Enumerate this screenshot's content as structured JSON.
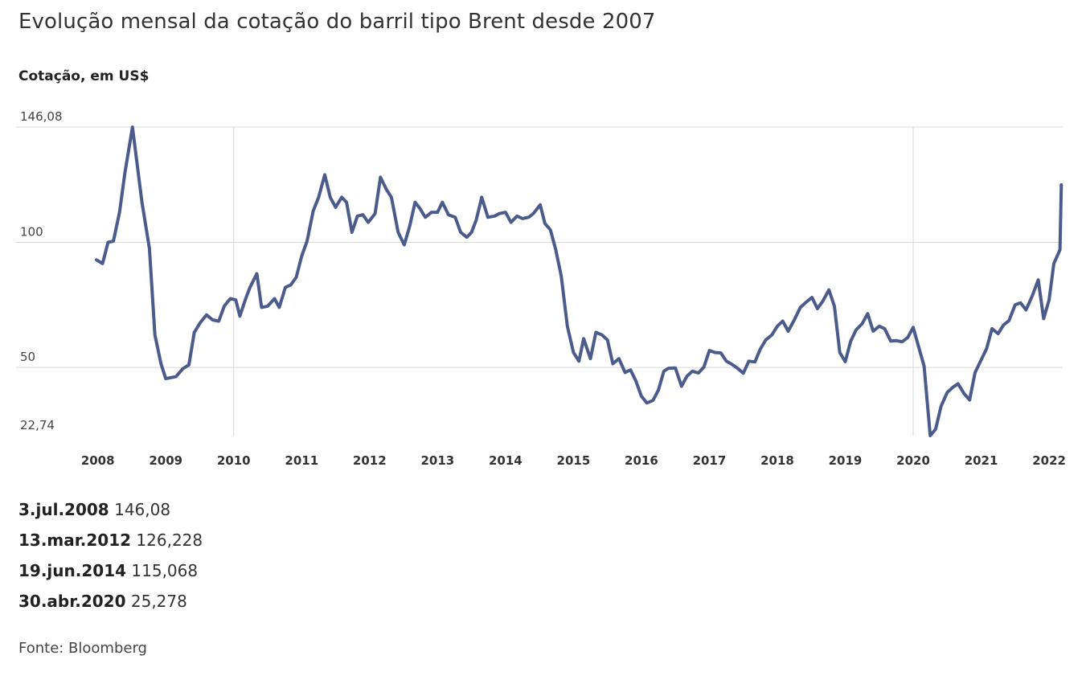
{
  "title": "Evolução mensal da cotação do barril tipo Brent desde 2007",
  "source": "Fonte: Bloomberg",
  "colors": {
    "line": "#4a5b8c",
    "grid": "#d9d9d9",
    "text": "#333333"
  },
  "highlights": [
    {
      "date": "3.jul.2008",
      "value": "146,08"
    },
    {
      "date": "13.mar.2012",
      "value": "126,228"
    },
    {
      "date": "19.jun.2014",
      "value": "115,068"
    },
    {
      "date": "30.abr.2020",
      "value": "25,278"
    }
  ],
  "chart_data": {
    "type": "line",
    "title": "Evolução mensal da cotação do barril tipo Brent desde 2007",
    "xlabel": "",
    "ylabel": "Cotação, em US$",
    "ylim": [
      22.74,
      146.08
    ],
    "yticks": [
      {
        "value": 146.08,
        "label": "146,08"
      },
      {
        "value": 100,
        "label": "100"
      },
      {
        "value": 50,
        "label": "50"
      },
      {
        "value": 22.74,
        "label": "22,74"
      }
    ],
    "xlim": [
      2007.98,
      2022.2
    ],
    "xticks": [
      "2008",
      "2009",
      "2010",
      "2011",
      "2012",
      "2013",
      "2014",
      "2015",
      "2016",
      "2017",
      "2018",
      "2019",
      "2020",
      "2021",
      "2022"
    ],
    "vgridlines": [
      "2010",
      "2020"
    ],
    "grid": true,
    "legend": "none",
    "series": [
      {
        "x": [
          2007.98,
          2008.07,
          2008.15,
          2008.23,
          2008.32,
          2008.4,
          2008.51,
          2008.65,
          2008.76,
          2008.84,
          2008.93,
          2009.0,
          2009.15,
          2009.25,
          2009.34,
          2009.42,
          2009.51,
          2009.6,
          2009.69,
          2009.78,
          2009.86,
          2009.95,
          2010.03,
          2010.09,
          2010.17,
          2010.24,
          2010.34,
          2010.41,
          2010.5,
          2010.6,
          2010.67,
          2010.76,
          2010.84,
          2010.92,
          2011.0,
          2011.08,
          2011.17,
          2011.25,
          2011.34,
          2011.42,
          2011.5,
          2011.59,
          2011.66,
          2011.74,
          2011.82,
          2011.9,
          2011.98,
          2012.08,
          2012.16,
          2012.25,
          2012.32,
          2012.42,
          2012.51,
          2012.59,
          2012.67,
          2012.74,
          2012.82,
          2012.91,
          2013.0,
          2013.07,
          2013.16,
          2013.26,
          2013.34,
          2013.43,
          2013.5,
          2013.57,
          2013.65,
          2013.74,
          2013.84,
          2013.91,
          2014.0,
          2014.08,
          2014.17,
          2014.25,
          2014.34,
          2014.41,
          2014.51,
          2014.58,
          2014.66,
          2014.74,
          2014.82,
          2014.91,
          2015.0,
          2015.08,
          2015.15,
          2015.25,
          2015.33,
          2015.42,
          2015.5,
          2015.58,
          2015.67,
          2015.76,
          2015.84,
          2015.92,
          2016.0,
          2016.08,
          2016.17,
          2016.25,
          2016.33,
          2016.4,
          2016.5,
          2016.59,
          2016.67,
          2016.75,
          2016.84,
          2016.92,
          2017.0,
          2017.08,
          2017.17,
          2017.25,
          2017.33,
          2017.41,
          2017.5,
          2017.58,
          2017.67,
          2017.75,
          2017.83,
          2017.92,
          2018.0,
          2018.08,
          2018.16,
          2018.25,
          2018.34,
          2018.42,
          2018.51,
          2018.59,
          2018.67,
          2018.76,
          2018.84,
          2018.92,
          2019.0,
          2019.08,
          2019.16,
          2019.25,
          2019.33,
          2019.41,
          2019.5,
          2019.58,
          2019.67,
          2019.75,
          2019.84,
          2019.92,
          2020.0,
          2020.16,
          2020.25,
          2020.33,
          2020.41,
          2020.5,
          2020.58,
          2020.66,
          2020.75,
          2020.83,
          2020.91,
          2021.0,
          2021.08,
          2021.16,
          2021.25,
          2021.33,
          2021.41,
          2021.5,
          2021.58,
          2021.66,
          2021.75,
          2021.84,
          2021.92,
          2022.0,
          2022.07,
          2022.16,
          2022.18
        ],
        "values": [
          93,
          91.5,
          100,
          100.5,
          112,
          128,
          146,
          116,
          97.5,
          63,
          51.5,
          45.5,
          46.3,
          49.5,
          51,
          64,
          68,
          71,
          69,
          68.5,
          74.5,
          77.5,
          77,
          70.5,
          77,
          82,
          87.5,
          74,
          74.5,
          77.5,
          74,
          82,
          83,
          86,
          94.5,
          100.5,
          112.5,
          118,
          127,
          118,
          114,
          118,
          116,
          104,
          110.5,
          111,
          108,
          111.5,
          126,
          121,
          118,
          104,
          99,
          106.5,
          116,
          113.5,
          110,
          112,
          112,
          116,
          111,
          110,
          104,
          102,
          104,
          109,
          118,
          110,
          110.5,
          111.5,
          112,
          108,
          110.5,
          109.5,
          110,
          111.5,
          115,
          107.5,
          105,
          97,
          86.5,
          66.5,
          56,
          52.5,
          61.5,
          53.5,
          64,
          63,
          61,
          51.5,
          53.5,
          48,
          49,
          44.5,
          38.5,
          35.8,
          36.8,
          41,
          48.5,
          49.7,
          49.8,
          42.5,
          46.5,
          48.5,
          47.8,
          50.2,
          56.8,
          56,
          55.8,
          52.5,
          51.3,
          49.8,
          47.7,
          52.5,
          52.2,
          57.3,
          61,
          63,
          66.5,
          68.5,
          64.5,
          69,
          74,
          76,
          78,
          73.5,
          76.5,
          81,
          74.5,
          56,
          52.3,
          60.5,
          65,
          67.5,
          71.5,
          64.5,
          66.5,
          65.5,
          60.5,
          60.7,
          60.3,
          62,
          66,
          50.5,
          22.74,
          25.3,
          34.5,
          40,
          42,
          43.5,
          39.5,
          37,
          48,
          53,
          57.5,
          65.5,
          63.5,
          67,
          68.7,
          75,
          75.8,
          73,
          78.5,
          85,
          69.5,
          77,
          91.5,
          97,
          123
        ]
      }
    ]
  }
}
